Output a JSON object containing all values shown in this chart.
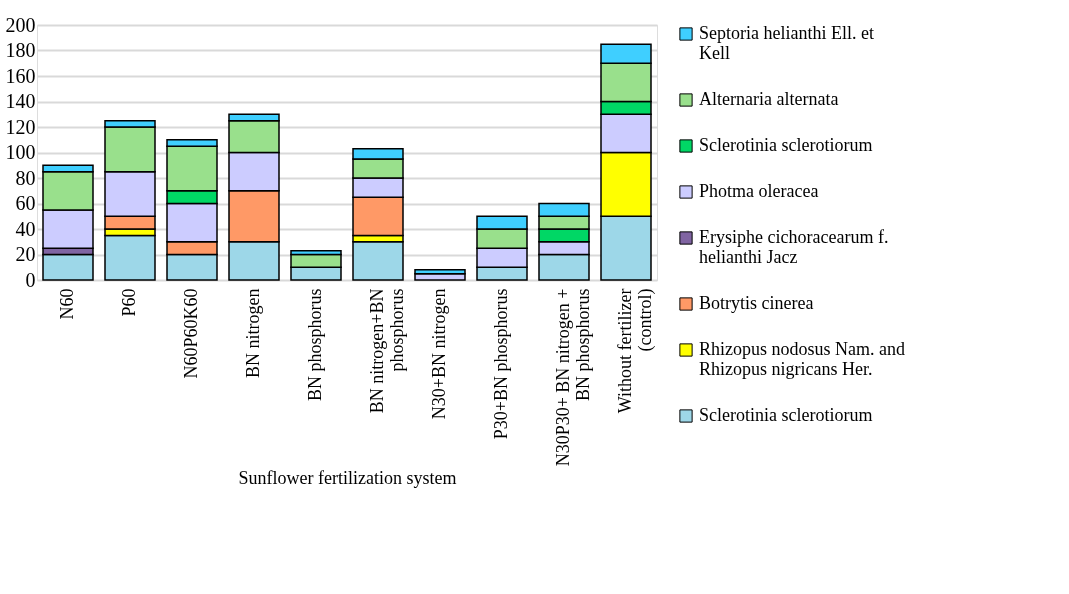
{
  "chart_data": {
    "type": "bar",
    "stacked": true,
    "xlabel": "Sunflower fertilization system",
    "categories": [
      "N60",
      "P60",
      "N60P60K60",
      "BN nitrogen",
      "BN phosphorus",
      "BN nitrogen+BN phosphorus",
      "N30+BN nitrogen",
      "P30+BN phosphorus",
      "N30P30+ BN nitrogen + BN phosphorus",
      "Without fertilizer (control)"
    ],
    "series": [
      {
        "name": "Sclerotinia sclerotiorum",
        "color": "#9dd7e8",
        "values": [
          20,
          35,
          20,
          30,
          10,
          30,
          null,
          10,
          20,
          50
        ]
      },
      {
        "name": "Rhizopus nodosus Nam. and Rhizopus nigricans Her.",
        "color": "#ffff00",
        "values": [
          null,
          5,
          null,
          null,
          null,
          5,
          null,
          null,
          null,
          50
        ]
      },
      {
        "name": "Botrytis cinerea",
        "color": "#ff9966",
        "values": [
          null,
          10,
          10,
          40,
          null,
          30,
          null,
          null,
          null,
          null
        ]
      },
      {
        "name": "Erysiphe cichoracearum f. helianthi Jacz",
        "color": "#8064a2",
        "values": [
          5,
          null,
          null,
          null,
          null,
          null,
          null,
          null,
          null,
          null
        ]
      },
      {
        "name": "Photma oleracea",
        "color": "#ccccff",
        "values": [
          30,
          35,
          30,
          30,
          null,
          15,
          5,
          15,
          10,
          30
        ]
      },
      {
        "name": "Sclerotinia sclerotiorum",
        "color": "#00d765",
        "values": [
          null,
          null,
          10,
          null,
          null,
          null,
          null,
          null,
          10,
          10
        ]
      },
      {
        "name": "Alternaria alternata",
        "color": "#99e08c",
        "values": [
          30,
          35,
          35,
          25,
          10,
          15,
          null,
          15,
          10,
          30
        ]
      },
      {
        "name": "Septoria helianthi Ell. et Kell",
        "color": "#3fcfff",
        "values": [
          5,
          5,
          5,
          5,
          3,
          8,
          3,
          10,
          10,
          15
        ]
      }
    ],
    "ylim": [
      0,
      200
    ],
    "yticks": [
      0,
      20,
      40,
      60,
      80,
      100,
      120,
      140,
      160,
      180,
      200
    ],
    "grid": "y",
    "legend": "right"
  }
}
